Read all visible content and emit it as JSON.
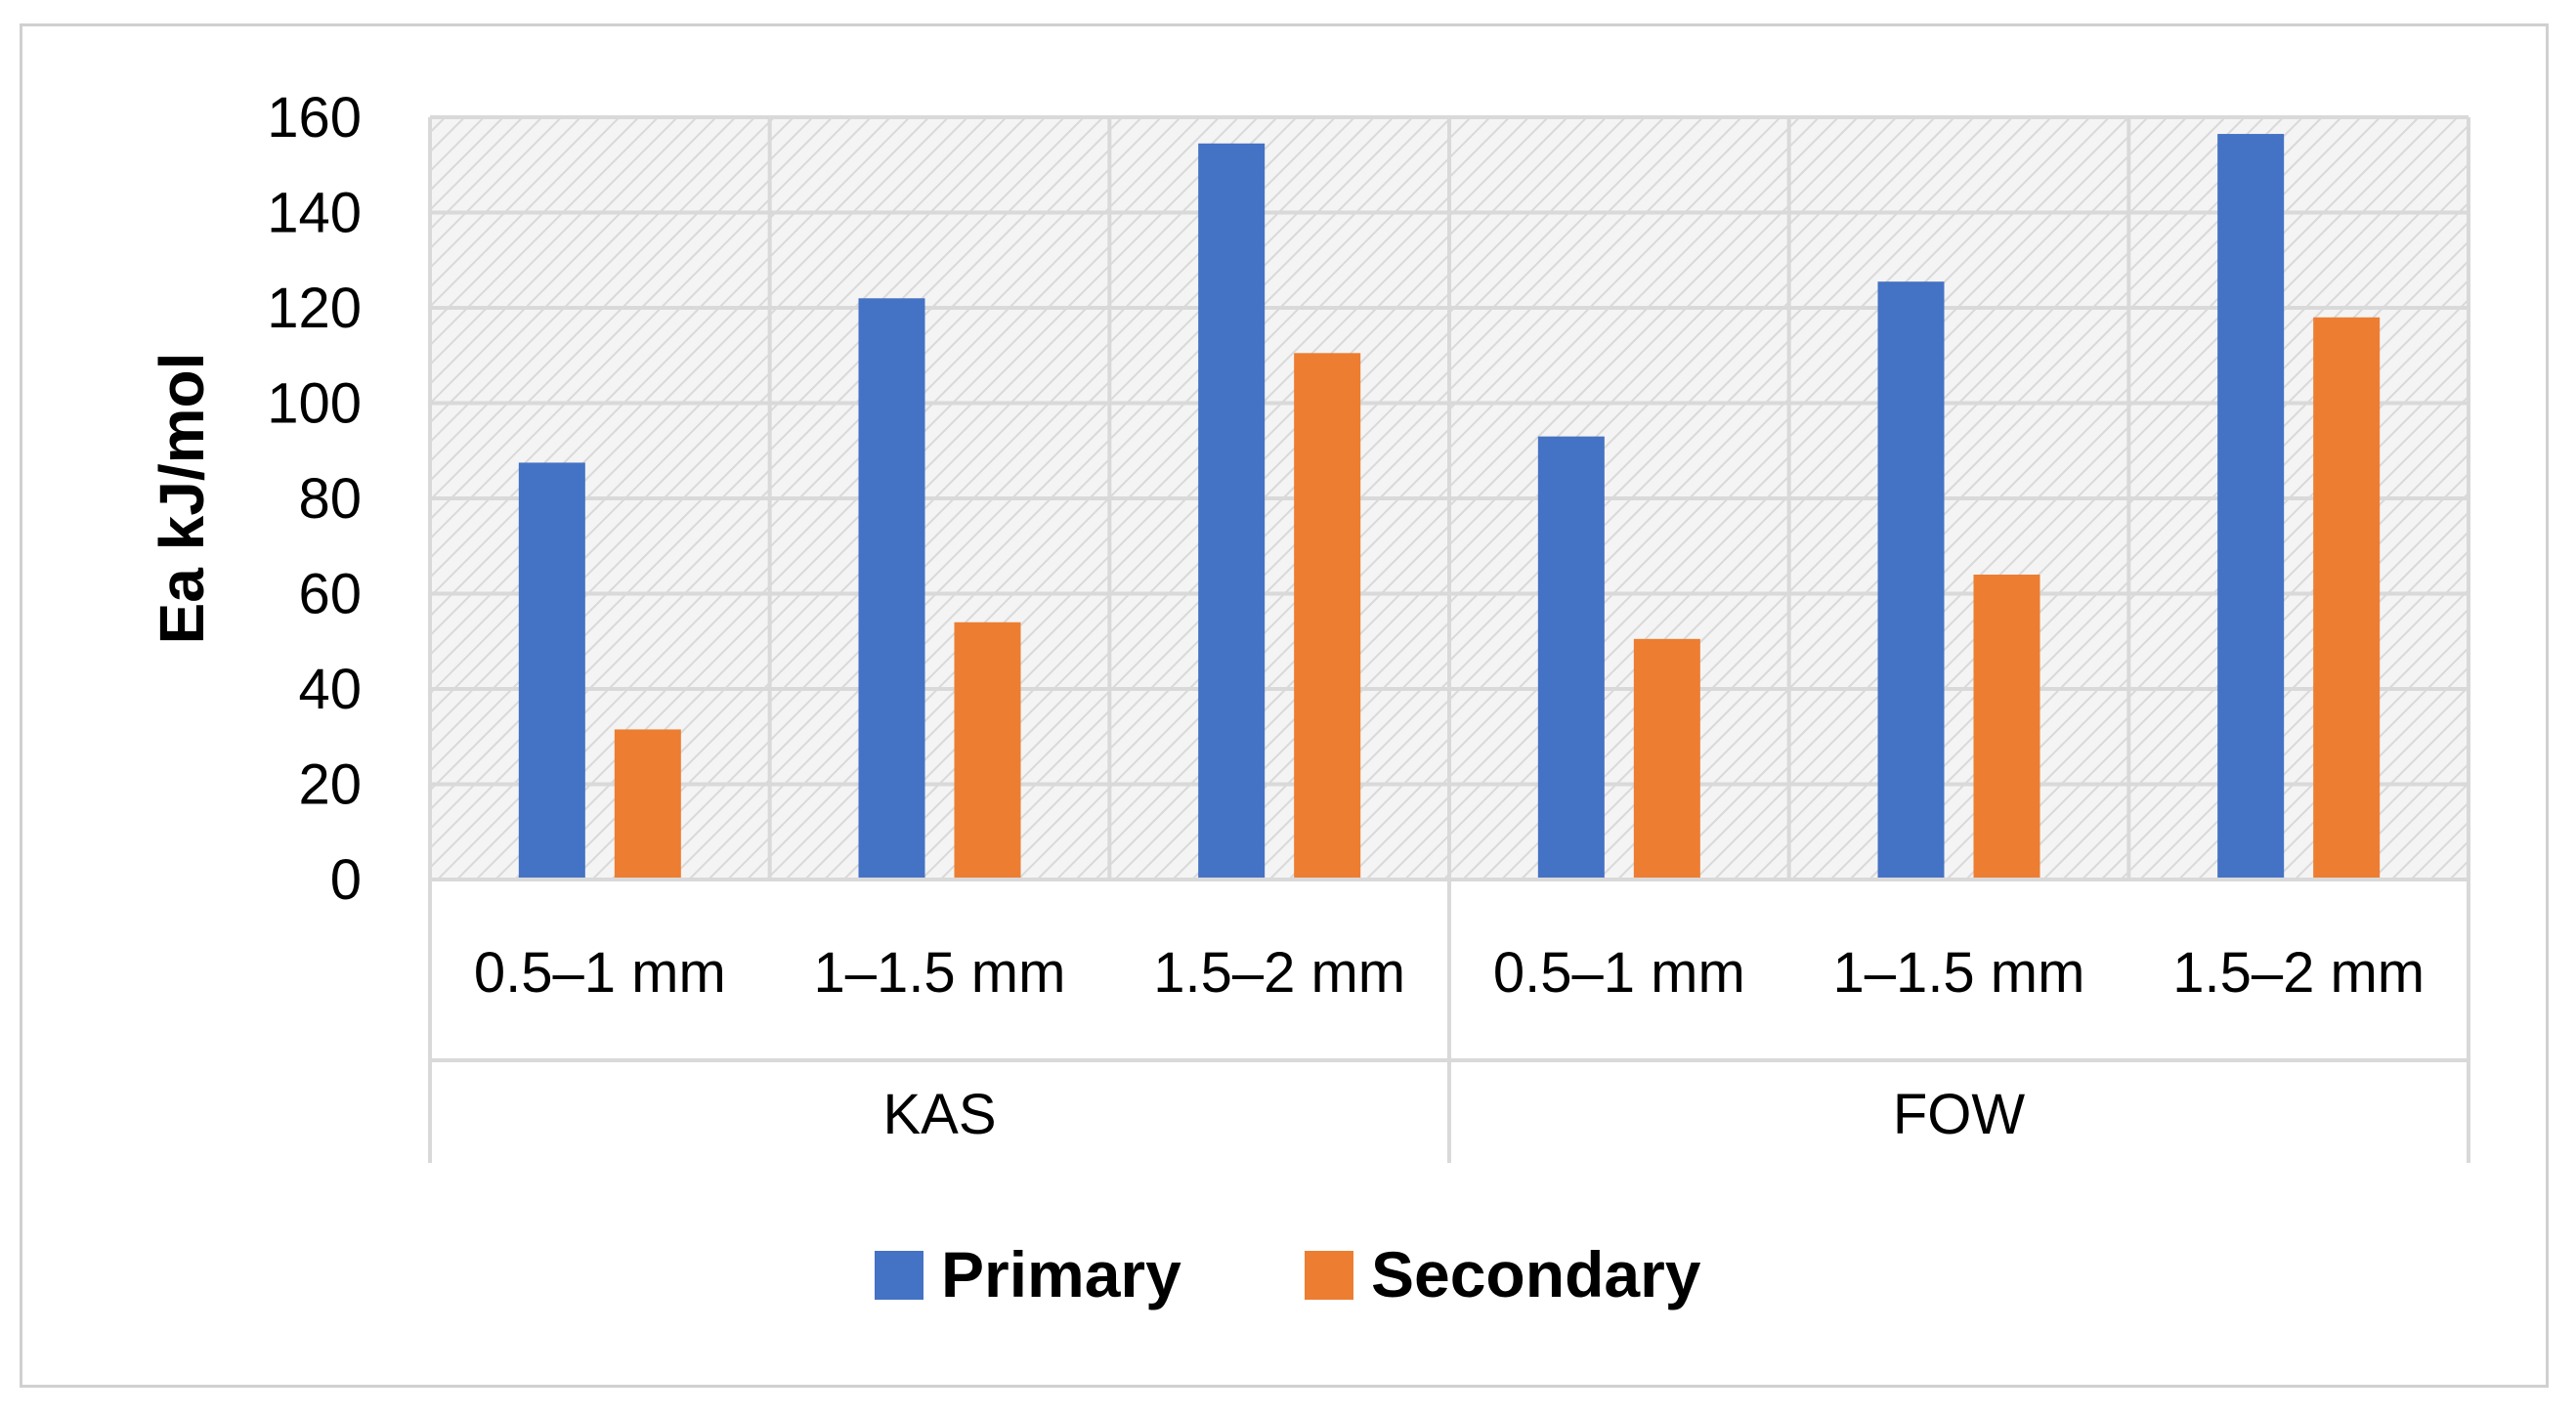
{
  "chart_data": {
    "type": "bar",
    "title": "",
    "xlabel": "",
    "ylabel": "Ea kJ/mol",
    "ylim": [
      0,
      160
    ],
    "yticks": [
      0,
      20,
      40,
      60,
      80,
      100,
      120,
      140,
      160
    ],
    "grid": true,
    "legend_position": "bottom",
    "groups": [
      {
        "label": "KAS",
        "categories": [
          "0.5–1 mm",
          "1–1.5 mm",
          "1.5–2 mm"
        ]
      },
      {
        "label": "FOW",
        "categories": [
          "0.5–1 mm",
          "1–1.5 mm",
          "1.5–2 mm"
        ]
      }
    ],
    "categories": [
      "0.5–1 mm",
      "1–1.5 mm",
      "1.5–2 mm",
      "0.5–1 mm",
      "1–1.5 mm",
      "1.5–2 mm"
    ],
    "series": [
      {
        "name": "Primary",
        "color": "#4472C4",
        "values": [
          87.5,
          122,
          154.5,
          93,
          125.5,
          156.5
        ]
      },
      {
        "name": "Secondary",
        "color": "#ED7D31",
        "values": [
          31.5,
          54,
          110.5,
          50.5,
          64,
          118
        ]
      }
    ]
  }
}
